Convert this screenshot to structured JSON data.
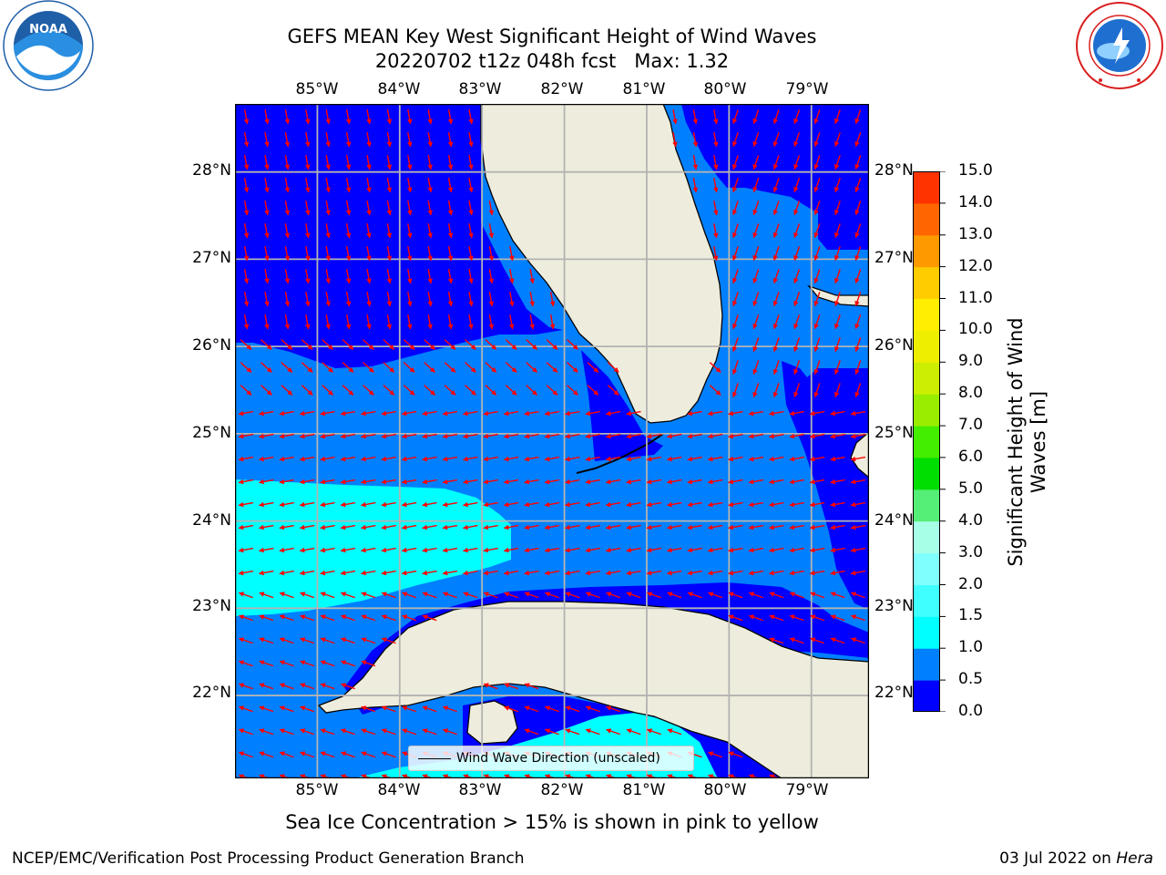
{
  "header": {
    "title": "GEFS MEAN Key West Significant Height of Wind Waves",
    "subtitle": "20220702 t12z 048h fcst   Max: 1.32"
  },
  "logos": {
    "left": {
      "text": "NOAA",
      "icon": "noaa-logo-icon",
      "color": "#1f5fa8"
    },
    "right": {
      "icon": "nws-logo-icon",
      "color": "#1f6fd0"
    }
  },
  "map": {
    "lon_ticks": [
      "85°W",
      "84°W",
      "83°W",
      "82°W",
      "81°W",
      "80°W",
      "79°W"
    ],
    "lat_ticks": [
      "28°N",
      "27°N",
      "26°N",
      "25°N",
      "24°N",
      "23°N",
      "22°N"
    ],
    "lon_values": [
      -85,
      -84,
      -83,
      -82,
      -81,
      -80,
      -79
    ],
    "lat_values": [
      28,
      27,
      26,
      25,
      24,
      23,
      22
    ],
    "extent": {
      "lon_min": -86.0,
      "lon_max": -78.3,
      "lat_min": 21.05,
      "lat_max": 28.78
    },
    "land_color": "#eeecdc",
    "gridlines": true,
    "arrow_color": "#ff0000",
    "legend": {
      "text": "Wind Wave Direction (unscaled)",
      "placement": "lower-center"
    }
  },
  "colorbar": {
    "label": "Significant Height of Wind Waves [m]",
    "label_lines": [
      "Significant Height of Wind",
      "Waves [m]"
    ],
    "ticks": [
      "0.0",
      "0.5",
      "1.0",
      "1.5",
      "2.0",
      "3.0",
      "4.0",
      "5.0",
      "6.0",
      "7.0",
      "8.0",
      "9.0",
      "10.0",
      "11.0",
      "12.0",
      "13.0",
      "14.0",
      "15.0"
    ],
    "colors": [
      "#0000ff",
      "#0080ff",
      "#00ffff",
      "#40ffff",
      "#80ffff",
      "#a8ffe8",
      "#55ee77",
      "#00dd00",
      "#44ee00",
      "#99ee00",
      "#ccee00",
      "#eeee00",
      "#ffee00",
      "#ffcc00",
      "#ff9900",
      "#ff6600",
      "#ff3300",
      "#ff0000"
    ]
  },
  "notes": {
    "sea_ice": "Sea Ice Concentration > 15% is shown in pink to yellow"
  },
  "footer": {
    "left": "NCEP/EMC/Verification Post Processing Product Generation Branch",
    "date": "03 Jul 2022 on ",
    "machine": "Hera"
  },
  "chart_data": {
    "type": "heatmap",
    "title": "GEFS MEAN Key West Significant Height of Wind Waves",
    "subtitle": "20220702 t12z 048h fcst   Max: 1.32",
    "max_value": 1.32,
    "x_range": [
      -86.0,
      -78.3
    ],
    "y_range": [
      21.05,
      28.78
    ],
    "levels": [
      0.0,
      0.5,
      1.0,
      1.5,
      2.0,
      3.0,
      4.0,
      5.0,
      6.0,
      7.0,
      8.0,
      9.0,
      10.0,
      11.0,
      12.0,
      13.0,
      14.0,
      15.0
    ],
    "regions": [
      {
        "area": "northern Gulf of Mexico and Atlantic north of 26.5°N",
        "range_m": [
          0.0,
          0.5
        ]
      },
      {
        "area": "Straits of Florida, Atlantic off SE Florida, southern Gulf",
        "range_m": [
          0.5,
          1.0
        ]
      },
      {
        "area": "Gulf west of 82.5°W near 23-24.5°N and south of Cuba",
        "range_m": [
          1.0,
          1.5
        ]
      }
    ],
    "arrows": "wind wave direction vectors, unscaled"
  }
}
